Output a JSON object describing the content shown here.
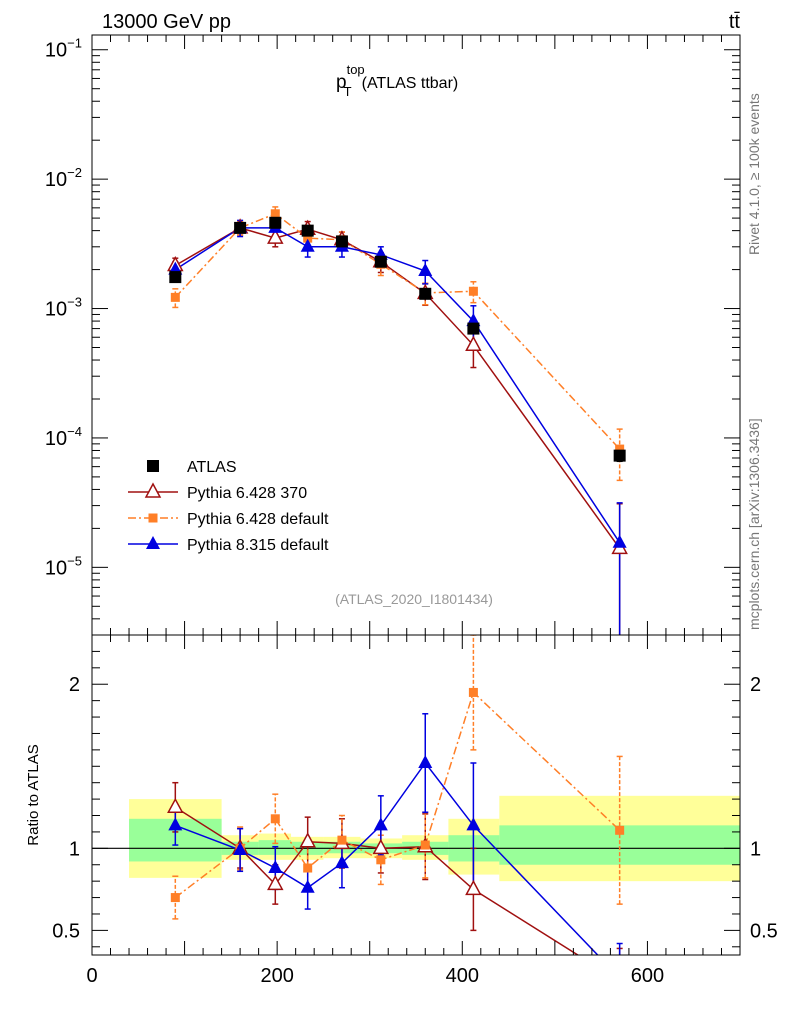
{
  "header": {
    "left": "13000 GeV pp",
    "right": "tt̄"
  },
  "side": {
    "rivet": "Rivet 4.1.0, ≥ 100k events",
    "mcplots": "mcplots.cern.ch [arXiv:1306.3436]"
  },
  "chart_data": [
    {
      "type": "line",
      "title": "p_T^top (ATLAS ttbar)",
      "title_main": "p",
      "title_sup": "top",
      "title_sub": "T",
      "title_rest": "(ATLAS ttbar)",
      "analysis_tag": "(ATLAS_2020_I1801434)",
      "yscale": "log",
      "ylim": [
        3e-06,
        0.13
      ],
      "xlim": [
        0,
        700
      ],
      "y_ticks": [
        {
          "value": 1e-05,
          "base": "10",
          "exp": "−5"
        },
        {
          "value": 0.0001,
          "base": "10",
          "exp": "−4"
        },
        {
          "value": 0.001,
          "base": "10",
          "exp": "−3"
        },
        {
          "value": 0.01,
          "base": "10",
          "exp": "−2"
        },
        {
          "value": 0.1,
          "base": "10",
          "exp": "−1"
        }
      ],
      "legend_position": "bottom-left",
      "series": [
        {
          "name": "ATLAS",
          "color": "#000000",
          "marker": "square",
          "line": "none",
          "x": [
            90,
            160,
            198,
            233,
            270,
            312,
            360,
            412,
            570
          ],
          "y": [
            0.00175,
            0.0042,
            0.0046,
            0.004,
            0.0033,
            0.0023,
            0.0013,
            0.0007,
            7.3e-05
          ],
          "err_lo": [
            0.00015,
            0.0003,
            0.0003,
            0.0003,
            0.0002,
            0.0002,
            0.0001,
            6e-05,
            7e-06
          ],
          "err_hi": [
            0.00015,
            0.0003,
            0.0003,
            0.0003,
            0.0002,
            0.0002,
            0.0001,
            6e-05,
            7e-06
          ]
        },
        {
          "name": "Pythia 6.428 370",
          "color": "#a01010",
          "marker": "triangle-open",
          "line": "solid",
          "x": [
            90,
            160,
            198,
            233,
            270,
            312,
            360,
            412,
            570
          ],
          "y": [
            0.00215,
            0.0042,
            0.0035,
            0.0041,
            0.0034,
            0.0023,
            0.00131,
            0.00052,
            1.4e-05
          ],
          "err_lo": [
            0.0003,
            0.0005,
            0.0005,
            0.0006,
            0.0005,
            0.0004,
            0.00025,
            0.00017,
            1.3e-05
          ],
          "err_hi": [
            0.0003,
            0.0005,
            0.0005,
            0.0006,
            0.0005,
            0.0004,
            0.00025,
            0.00017,
            1.7e-05
          ]
        },
        {
          "name": "Pythia 6.428 default",
          "color": "#ff7f27",
          "marker": "square-small",
          "line": "dashdot",
          "x": [
            90,
            160,
            198,
            233,
            270,
            312,
            360,
            412,
            570
          ],
          "y": [
            0.00122,
            0.0042,
            0.0054,
            0.0035,
            0.0034,
            0.0022,
            0.00132,
            0.00136,
            8.2e-05
          ],
          "err_lo": [
            0.0002,
            0.0005,
            0.0007,
            0.0005,
            0.0005,
            0.0004,
            0.00025,
            0.00025,
            3.5e-05
          ],
          "err_hi": [
            0.0002,
            0.0005,
            0.0007,
            0.0005,
            0.0005,
            0.0004,
            0.00025,
            0.00025,
            3.5e-05
          ]
        },
        {
          "name": "Pythia 8.315 default",
          "color": "#0000e0",
          "marker": "triangle",
          "line": "solid",
          "x": [
            90,
            160,
            198,
            233,
            270,
            312,
            360,
            412,
            570
          ],
          "y": [
            0.002,
            0.0042,
            0.0042,
            0.003,
            0.003,
            0.0026,
            0.00195,
            0.0008,
            1.55e-05
          ],
          "err_lo": [
            0.0003,
            0.0006,
            0.0006,
            0.0005,
            0.0005,
            0.0004,
            0.0004,
            0.00025,
            1.5e-05
          ],
          "err_hi": [
            0.0003,
            0.0006,
            0.0006,
            0.0005,
            0.0005,
            0.0004,
            0.0004,
            0.00025,
            1.6e-05
          ]
        }
      ]
    },
    {
      "type": "line",
      "title": "Ratio to ATLAS",
      "ylabel": "Ratio to ATLAS",
      "yscale": "linear",
      "ylim": [
        0.35,
        2.3
      ],
      "xlim": [
        0,
        700
      ],
      "y_ticks": [
        {
          "value": 0.5,
          "label": "0.5"
        },
        {
          "value": 1,
          "label": "1"
        },
        {
          "value": 2,
          "label": "2"
        }
      ],
      "x_ticks": [
        {
          "value": 0,
          "label": "0"
        },
        {
          "value": 200,
          "label": "200"
        },
        {
          "value": 400,
          "label": "400"
        },
        {
          "value": 600,
          "label": "600"
        }
      ],
      "bands": [
        {
          "x0": 40,
          "x1": 140,
          "yellow": [
            0.82,
            1.3
          ],
          "green": [
            0.92,
            1.18
          ]
        },
        {
          "x0": 140,
          "x1": 180,
          "yellow": [
            0.93,
            1.08
          ],
          "green": [
            0.96,
            1.04
          ]
        },
        {
          "x0": 180,
          "x1": 215,
          "yellow": [
            0.93,
            1.09
          ],
          "green": [
            0.96,
            1.05
          ]
        },
        {
          "x0": 215,
          "x1": 250,
          "yellow": [
            0.93,
            1.07
          ],
          "green": [
            0.96,
            1.04
          ]
        },
        {
          "x0": 250,
          "x1": 290,
          "yellow": [
            0.94,
            1.07
          ],
          "green": [
            0.97,
            1.04
          ]
        },
        {
          "x0": 290,
          "x1": 335,
          "yellow": [
            0.94,
            1.06
          ],
          "green": [
            0.97,
            1.03
          ]
        },
        {
          "x0": 335,
          "x1": 385,
          "yellow": [
            0.93,
            1.08
          ],
          "green": [
            0.96,
            1.04
          ]
        },
        {
          "x0": 385,
          "x1": 440,
          "yellow": [
            0.84,
            1.18
          ],
          "green": [
            0.92,
            1.08
          ]
        },
        {
          "x0": 440,
          "x1": 700,
          "yellow": [
            0.8,
            1.32
          ],
          "green": [
            0.9,
            1.14
          ]
        }
      ],
      "series": [
        {
          "name": "Pythia 6.428 370",
          "color": "#a01010",
          "marker": "triangle-open",
          "line": "solid",
          "x": [
            90,
            160,
            198,
            233,
            270,
            312,
            360,
            412,
            570
          ],
          "y": [
            1.25,
            1.0,
            0.78,
            1.04,
            1.03,
            1.0,
            1.01,
            0.75,
            0.19
          ],
          "err": [
            0.15,
            0.12,
            0.12,
            0.15,
            0.15,
            0.15,
            0.2,
            0.25,
            0.2
          ]
        },
        {
          "name": "Pythia 6.428 default",
          "color": "#ff7f27",
          "marker": "square-small",
          "line": "dashdot",
          "x": [
            90,
            160,
            198,
            233,
            270,
            312,
            360,
            412,
            570
          ],
          "y": [
            0.7,
            1.0,
            1.18,
            0.88,
            1.05,
            0.93,
            1.02,
            1.95,
            1.11
          ],
          "err": [
            0.13,
            0.13,
            0.15,
            0.13,
            0.15,
            0.15,
            0.2,
            0.35,
            0.45
          ]
        },
        {
          "name": "Pythia 8.315 default",
          "color": "#0000e0",
          "marker": "triangle",
          "line": "solid",
          "x": [
            90,
            160,
            198,
            233,
            270,
            312,
            360,
            412,
            570
          ],
          "y": [
            1.14,
            0.99,
            0.88,
            0.76,
            0.91,
            1.14,
            1.52,
            1.14,
            0.21
          ],
          "err": [
            0.12,
            0.13,
            0.13,
            0.13,
            0.15,
            0.18,
            0.3,
            0.38,
            0.21
          ]
        }
      ]
    }
  ]
}
